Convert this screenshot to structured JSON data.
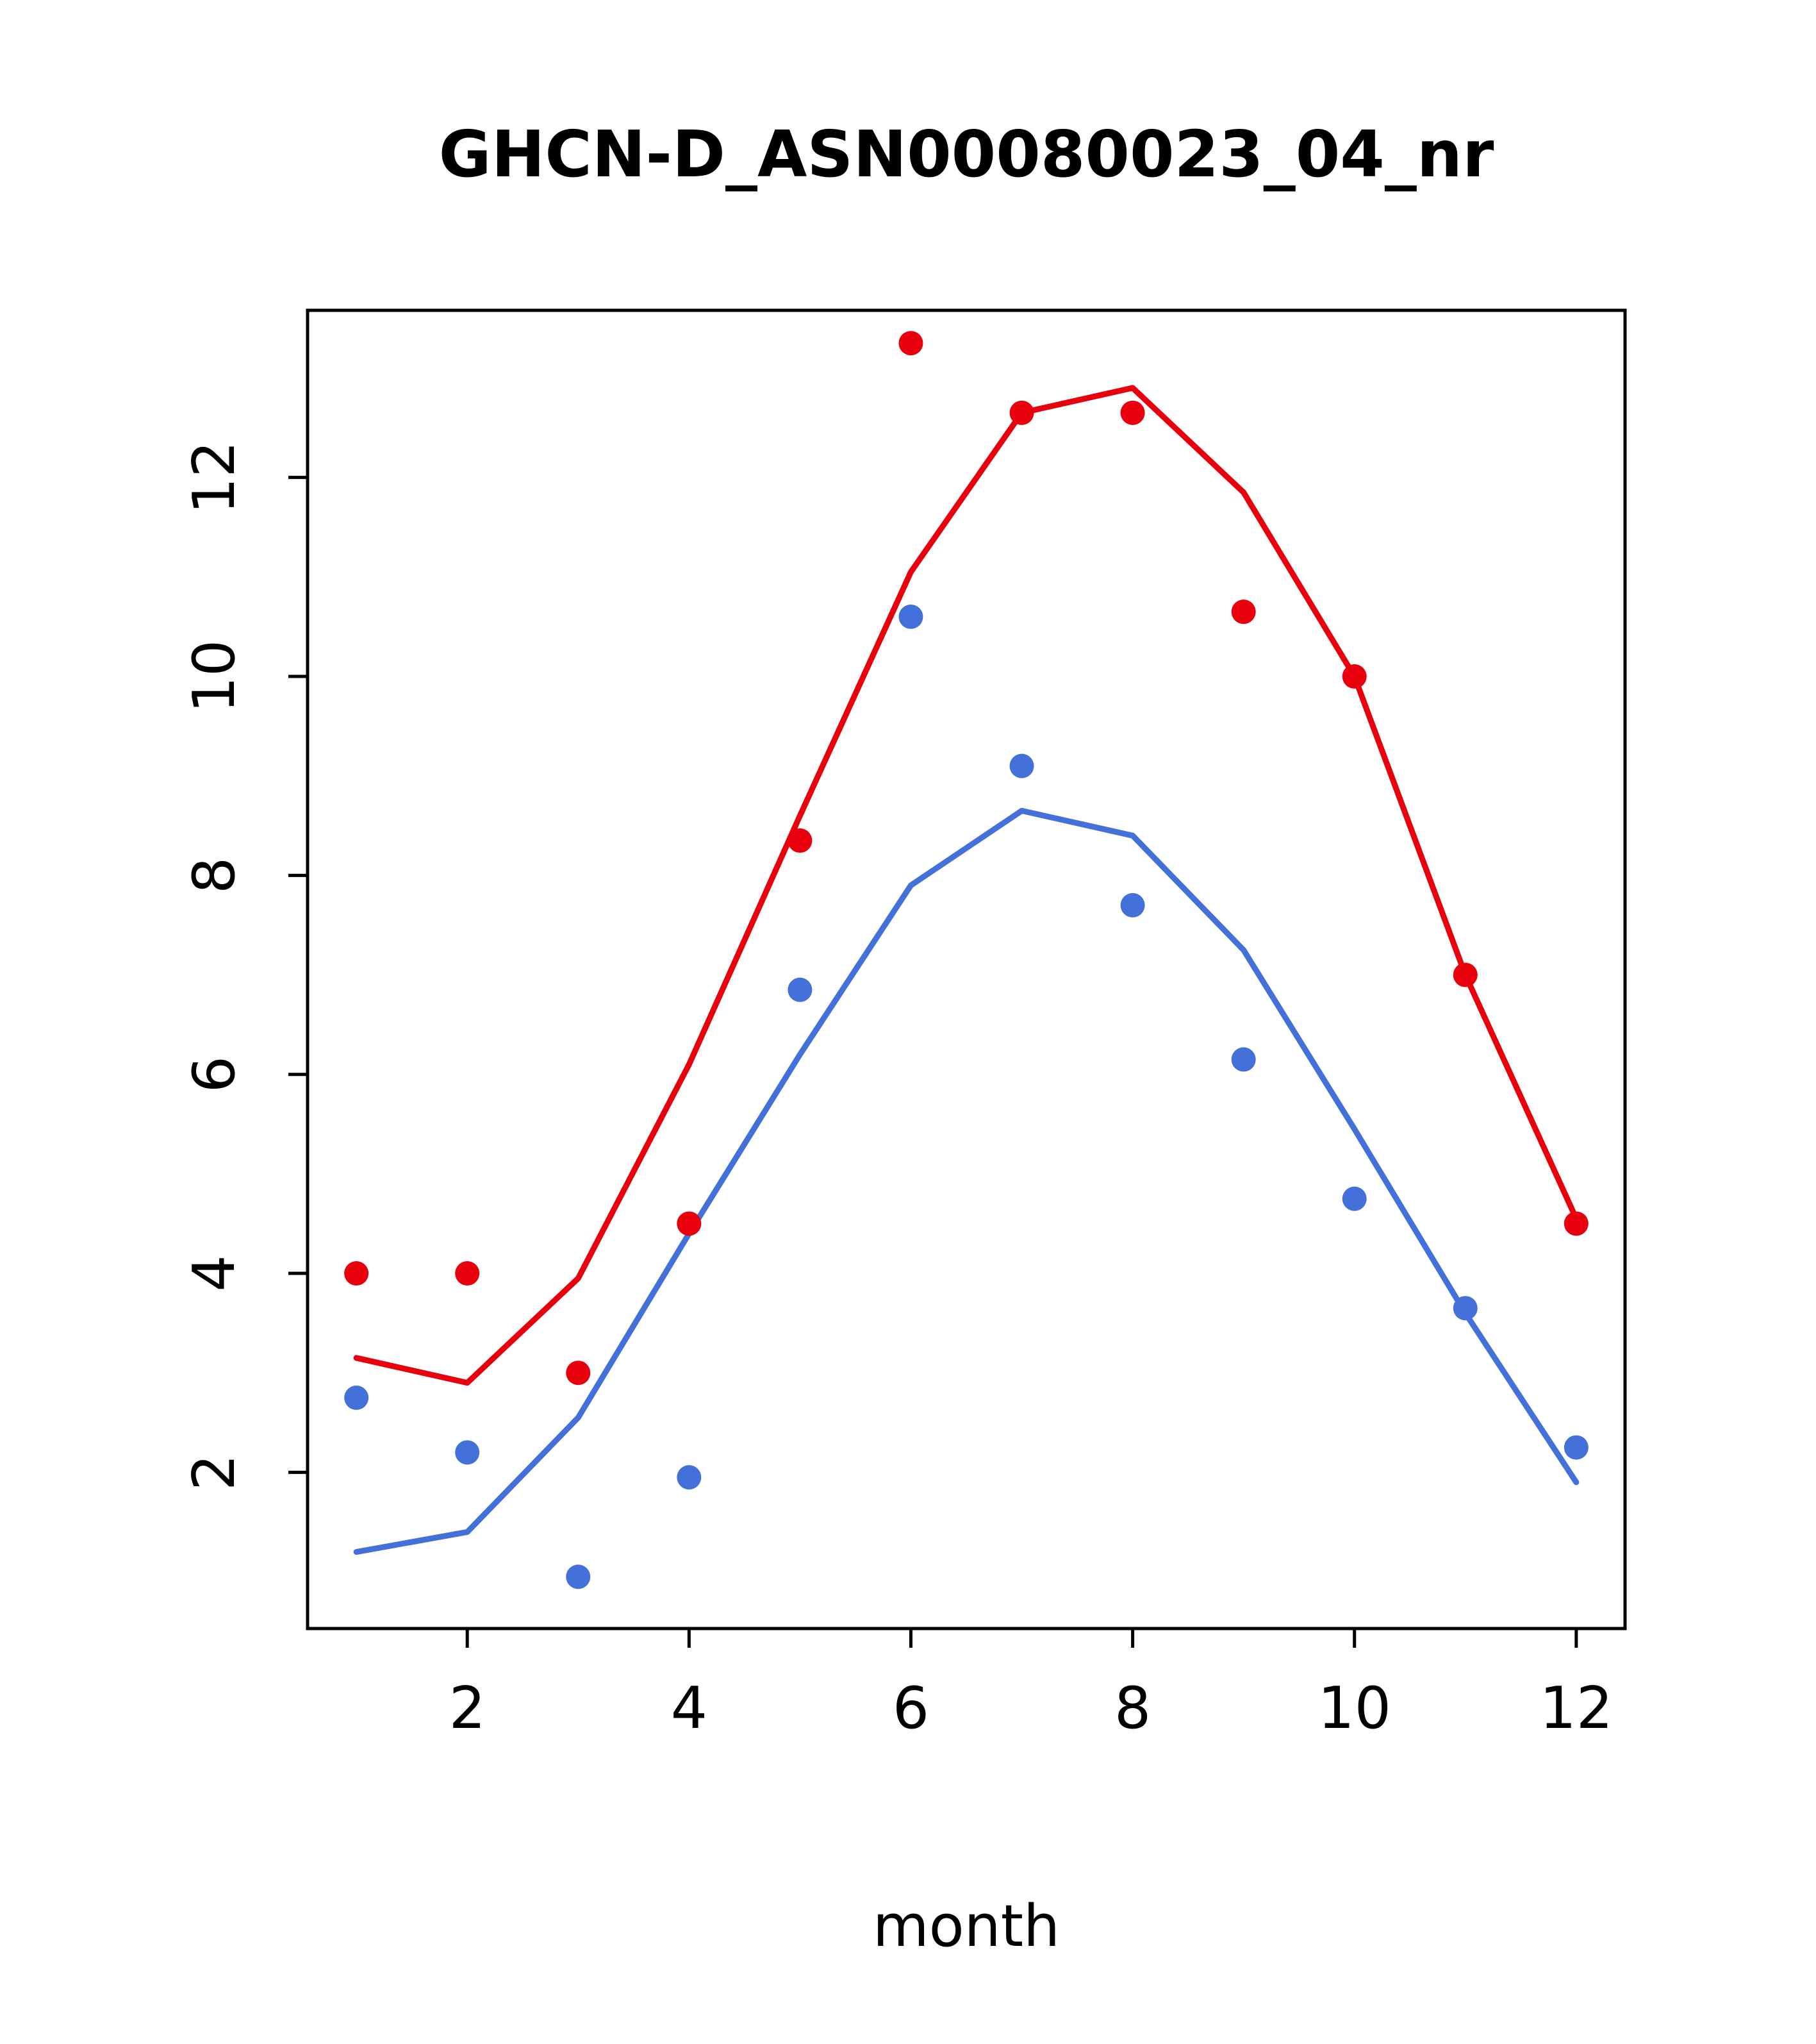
{
  "chart_data": {
    "type": "line+scatter",
    "title": "GHCN-D_ASN00080023_04_nr",
    "xlabel": "month",
    "ylabel": "",
    "x": [
      1,
      2,
      3,
      4,
      5,
      6,
      7,
      8,
      9,
      10,
      11,
      12
    ],
    "xlim": [
      0.56,
      12.44
    ],
    "ylim": [
      0.43,
      13.68
    ],
    "x_ticks": [
      2,
      4,
      6,
      8,
      10,
      12
    ],
    "y_ticks": [
      2,
      4,
      6,
      8,
      10,
      12
    ],
    "grid": false,
    "legend": "none",
    "colors": {
      "red": "#e8000d",
      "blue": "#4470d9"
    },
    "series": [
      {
        "name": "red-points",
        "type": "scatter",
        "color": "#e8000d",
        "values": [
          4.0,
          4.0,
          3.0,
          4.5,
          8.35,
          13.35,
          12.65,
          12.65,
          10.65,
          10.0,
          7.0,
          4.5
        ]
      },
      {
        "name": "red-line",
        "type": "line",
        "color": "#e8000d",
        "values": [
          3.15,
          2.9,
          3.95,
          6.1,
          8.6,
          11.05,
          12.65,
          12.9,
          11.85,
          10.0,
          7.0,
          4.55
        ]
      },
      {
        "name": "blue-points",
        "type": "scatter",
        "color": "#4470d9",
        "values": [
          2.75,
          2.2,
          0.95,
          1.95,
          6.85,
          10.6,
          9.1,
          7.7,
          6.15,
          4.75,
          3.65,
          2.25
        ]
      },
      {
        "name": "blue-line",
        "type": "line",
        "color": "#4470d9",
        "values": [
          1.2,
          1.4,
          2.55,
          4.4,
          6.2,
          7.9,
          8.65,
          8.4,
          7.25,
          5.45,
          3.6,
          1.9
        ]
      }
    ]
  }
}
